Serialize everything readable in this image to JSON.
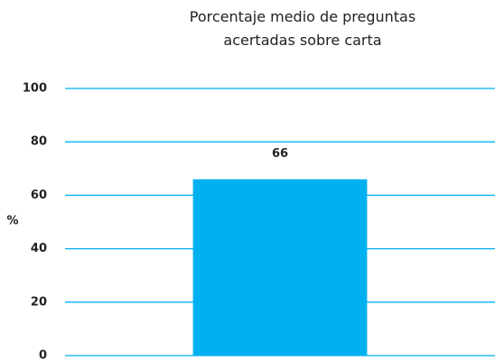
{
  "chart_data": {
    "type": "bar",
    "title": "Porcentaje medio de preguntas acertadas sobre carta",
    "ylabel": "%",
    "categories": [
      null
    ],
    "values": [
      66
    ],
    "color": "#00b0f0",
    "ylim": [
      0,
      100
    ],
    "yticks": [
      0,
      20,
      40,
      60,
      80,
      100
    ],
    "grid": true
  }
}
